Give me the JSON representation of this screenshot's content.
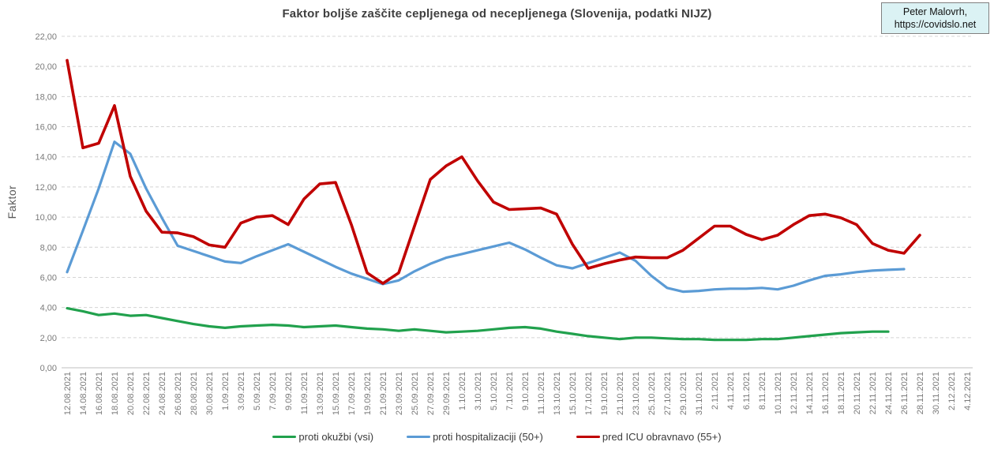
{
  "title": "Faktor boljše zaščite cepljenega od necepljenega (Slovenija, podatki NIJZ)",
  "badge": {
    "line1": "Peter Malovrh,",
    "line2": "https://covidslo.net"
  },
  "chart_data": {
    "type": "line",
    "title": "Faktor boljše zaščite cepljenega od necepljenega (Slovenija, podatki NIJZ)",
    "xlabel": "",
    "ylabel": "Faktor",
    "ylim": [
      0,
      22
    ],
    "ytick_step": 2,
    "y_tick_labels": [
      "0,00",
      "2,00",
      "4,00",
      "6,00",
      "8,00",
      "10,00",
      "12,00",
      "14,00",
      "16,00",
      "18,00",
      "20,00",
      "22,00"
    ],
    "grid": "horizontal-dashed",
    "legend_position": "bottom",
    "x": [
      "12.08.2021",
      "14.08.2021",
      "16.08.2021",
      "18.08.2021",
      "20.08.2021",
      "22.08.2021",
      "24.08.2021",
      "26.08.2021",
      "28.08.2021",
      "30.08.2021",
      "1.09.2021",
      "3.09.2021",
      "5.09.2021",
      "7.09.2021",
      "9.09.2021",
      "11.09.2021",
      "13.09.2021",
      "15.09.2021",
      "17.09.2021",
      "19.09.2021",
      "21.09.2021",
      "23.09.2021",
      "25.09.2021",
      "27.09.2021",
      "29.09.2021",
      "1.10.2021",
      "3.10.2021",
      "5.10.2021",
      "7.10.2021",
      "9.10.2021",
      "11.10.2021",
      "13.10.2021",
      "15.10.2021",
      "17.10.2021",
      "19.10.2021",
      "21.10.2021",
      "23.10.2021",
      "25.10.2021",
      "27.10.2021",
      "29.10.2021",
      "31.10.2021",
      "2.11.2021",
      "4.11.2021",
      "6.11.2021",
      "8.11.2021",
      "10.11.2021",
      "12.11.2021",
      "14.11.2021",
      "16.11.2021",
      "18.11.2021",
      "20.11.2021",
      "22.11.2021",
      "24.11.2021",
      "26.11.2021",
      "28.11.2021",
      "30.11.2021",
      "2.12.2021",
      "4.12.2021"
    ],
    "series": [
      {
        "name": "proti okužbi (vsi)",
        "color": "#21a14d",
        "values": [
          3.95,
          3.75,
          3.5,
          3.6,
          3.45,
          3.5,
          3.3,
          3.1,
          2.9,
          2.75,
          2.65,
          2.75,
          2.8,
          2.85,
          2.8,
          2.7,
          2.75,
          2.8,
          2.7,
          2.6,
          2.55,
          2.45,
          2.55,
          2.45,
          2.35,
          2.4,
          2.45,
          2.55,
          2.65,
          2.7,
          2.6,
          2.4,
          2.25,
          2.1,
          2.0,
          1.9,
          2.0,
          2.0,
          1.95,
          1.9,
          1.9,
          1.85,
          1.85,
          1.85,
          1.9,
          1.9,
          2.0,
          2.1,
          2.2,
          2.3,
          2.35,
          2.4,
          2.4,
          null,
          null,
          null,
          null,
          null
        ]
      },
      {
        "name": "proti hospitalizaciji (50+)",
        "color": "#5b9bd5",
        "values": [
          6.35,
          9.1,
          11.9,
          15.0,
          14.2,
          11.9,
          9.95,
          8.1,
          7.75,
          7.4,
          7.05,
          6.95,
          7.4,
          7.8,
          8.2,
          7.7,
          7.2,
          6.7,
          6.25,
          5.9,
          5.55,
          5.8,
          6.4,
          6.9,
          7.3,
          7.55,
          7.8,
          8.05,
          8.3,
          7.85,
          7.3,
          6.8,
          6.6,
          6.95,
          7.3,
          7.65,
          7.1,
          6.1,
          5.3,
          5.05,
          5.1,
          5.2,
          5.25,
          5.25,
          5.3,
          5.2,
          5.45,
          5.8,
          6.1,
          6.2,
          6.35,
          6.45,
          6.5,
          6.55,
          null,
          null,
          null,
          null
        ]
      },
      {
        "name": "pred ICU obravnavo (55+)",
        "color": "#c00000",
        "values": [
          20.4,
          14.6,
          14.9,
          17.4,
          12.7,
          10.4,
          9.0,
          8.95,
          8.7,
          8.15,
          8.0,
          9.6,
          10.0,
          10.1,
          9.5,
          11.2,
          12.2,
          12.3,
          9.5,
          6.3,
          5.6,
          6.3,
          9.4,
          12.5,
          13.4,
          14.0,
          12.4,
          11.0,
          10.5,
          10.55,
          10.6,
          10.2,
          8.2,
          6.6,
          6.9,
          7.15,
          7.35,
          7.3,
          7.3,
          7.8,
          8.6,
          9.4,
          9.4,
          8.85,
          8.5,
          8.8,
          9.5,
          10.1,
          10.2,
          9.95,
          9.5,
          8.25,
          7.8,
          7.6,
          8.8,
          null,
          null,
          null
        ]
      }
    ],
    "style": {
      "gridline_color": "#d4d4d4",
      "axis_line_color": "#bfbfbf",
      "tick_label_color": "#7a7a7a",
      "title_color": "#3f3f3f"
    }
  }
}
